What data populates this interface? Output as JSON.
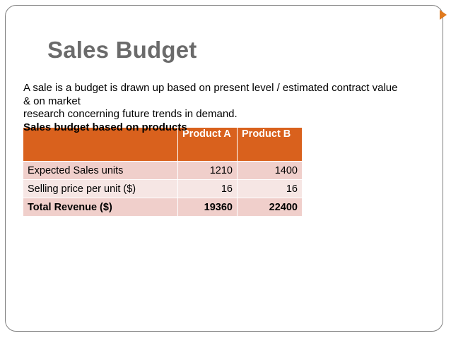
{
  "slide": {
    "title": "Sales Budget",
    "intro_lines": [
      "A sale is a budget is drawn up based on present level / estimated contract value",
      "& on market",
      "research concerning future trends in demand."
    ],
    "subheading": "Sales budget based on products"
  },
  "table": {
    "headers": [
      "",
      "Product A",
      "Product B"
    ],
    "rows": [
      {
        "label": "Expected Sales units",
        "a": "1210",
        "b": "1400"
      },
      {
        "label": "Selling price per unit ($)",
        "a": "16",
        "b": "16"
      },
      {
        "label": "Total Revenue ($)",
        "a": "19360",
        "b": "22400"
      }
    ]
  },
  "colors": {
    "accent": "#d9611d",
    "row_dark": "#f0cfcb",
    "row_light": "#f6e6e4",
    "title_gray": "#6b6b6b"
  }
}
